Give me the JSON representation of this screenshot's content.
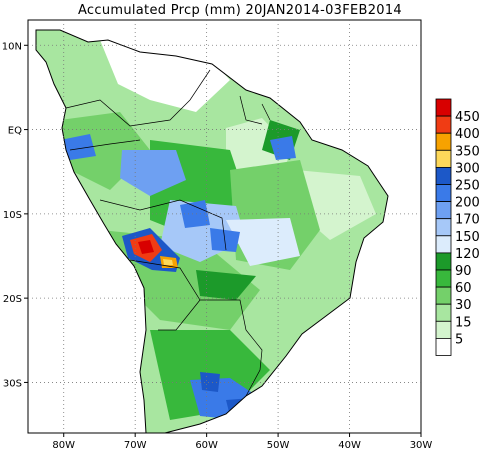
{
  "title": "Accumulated Prcp (mm) 20JAN2014-03FEB2014",
  "map": {
    "lon_range": [
      -85,
      -30
    ],
    "lat_range": [
      -36,
      13
    ],
    "lon_ticks": [
      {
        "value": -80,
        "label": "80W"
      },
      {
        "value": -70,
        "label": "70W"
      },
      {
        "value": -60,
        "label": "60W"
      },
      {
        "value": -50,
        "label": "50W"
      },
      {
        "value": -40,
        "label": "40W"
      },
      {
        "value": -30,
        "label": "30W"
      }
    ],
    "lat_ticks": [
      {
        "value": 10,
        "label": "10N"
      },
      {
        "value": 0,
        "label": "EQ"
      },
      {
        "value": -10,
        "label": "10S"
      },
      {
        "value": -20,
        "label": "20S"
      },
      {
        "value": -30,
        "label": "30S"
      }
    ],
    "grid": true
  },
  "legend": {
    "placement": "right",
    "bins": [
      {
        "label": "",
        "color": "#d80000"
      },
      {
        "label": "450",
        "color": "#f03c14"
      },
      {
        "label": "400",
        "color": "#f7a200"
      },
      {
        "label": "350",
        "color": "#fdd85a"
      },
      {
        "label": "300",
        "color": "#1c58c8"
      },
      {
        "label": "250",
        "color": "#3a7ae8"
      },
      {
        "label": "200",
        "color": "#6ea0f2"
      },
      {
        "label": "170",
        "color": "#a6c8f8"
      },
      {
        "label": "150",
        "color": "#dcecfc"
      },
      {
        "label": "120",
        "color": "#1c9a2a"
      },
      {
        "label": "90",
        "color": "#38b83c"
      },
      {
        "label": "60",
        "color": "#74d06a"
      },
      {
        "label": "30",
        "color": "#a8e6a0"
      },
      {
        "label": "15",
        "color": "#d4f4ce"
      },
      {
        "label": "5",
        "color": "#ffffff"
      }
    ]
  }
}
